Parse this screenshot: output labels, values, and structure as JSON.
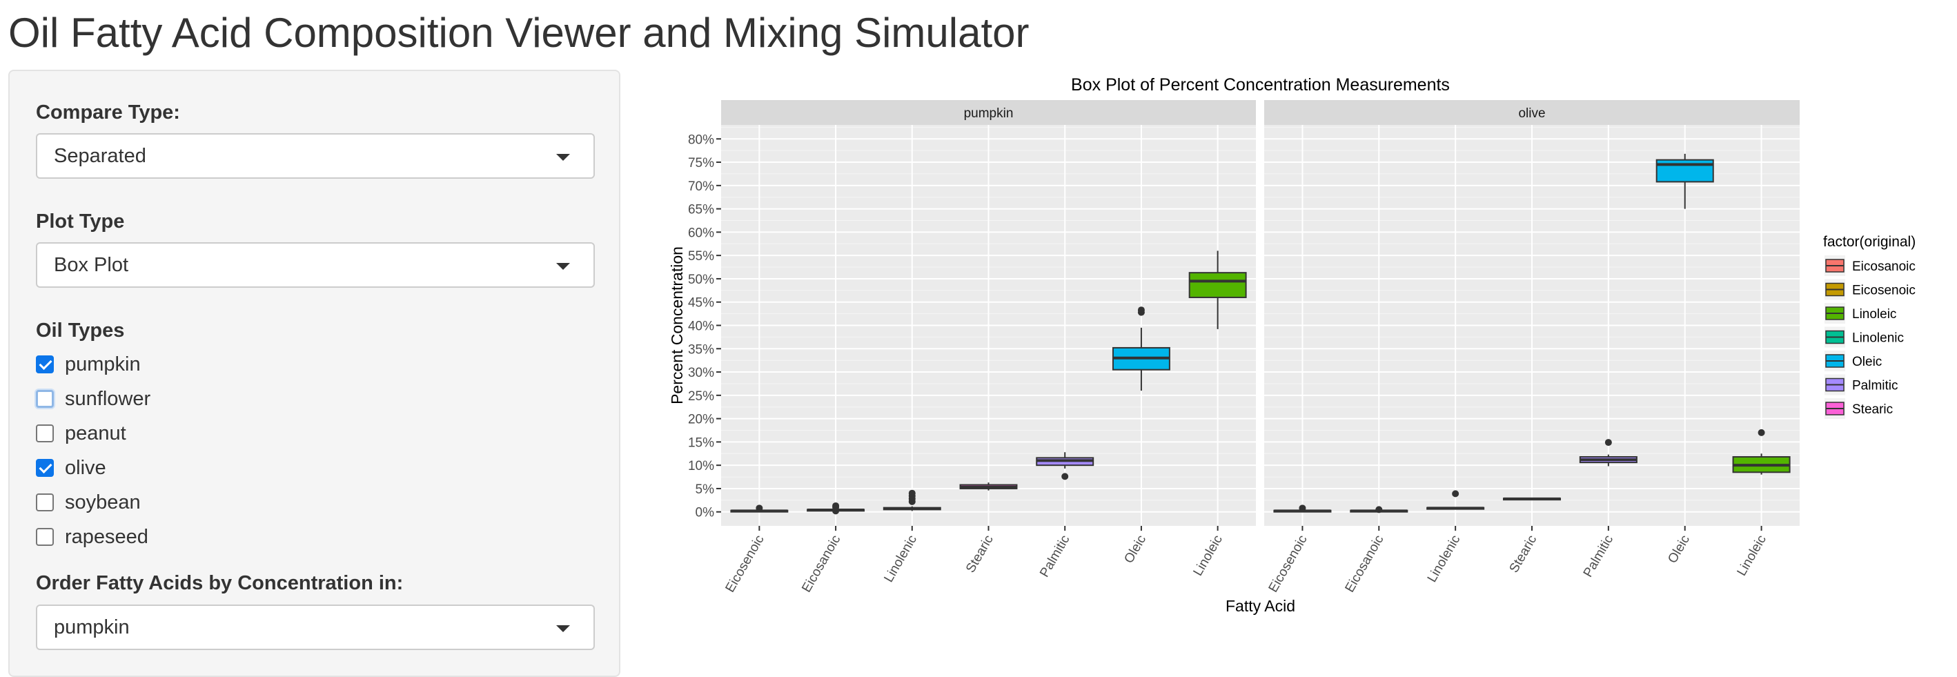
{
  "app": {
    "title": "Oil Fatty Acid Composition Viewer and Mixing Simulator"
  },
  "sidebar": {
    "compare_type": {
      "label": "Compare Type:",
      "value": "Separated"
    },
    "plot_type": {
      "label": "Plot Type",
      "value": "Box Plot"
    },
    "oil_types": {
      "label": "Oil Types",
      "options": [
        {
          "label": "pumpkin",
          "checked": true
        },
        {
          "label": "sunflower",
          "checked": false,
          "focused": true
        },
        {
          "label": "peanut",
          "checked": false
        },
        {
          "label": "olive",
          "checked": true
        },
        {
          "label": "soybean",
          "checked": false
        },
        {
          "label": "rapeseed",
          "checked": false
        }
      ]
    },
    "order_by": {
      "label": "Order Fatty Acids by Concentration in:",
      "value": "pumpkin"
    }
  },
  "chart_data": {
    "type": "box",
    "title": "Box Plot of Percent Concentration Measurements",
    "xlabel": "Fatty Acid",
    "ylabel": "Percent Concentration",
    "ylim": [
      -3,
      83
    ],
    "yticks": [
      "0%",
      "5%",
      "10%",
      "15%",
      "20%",
      "25%",
      "30%",
      "35%",
      "40%",
      "45%",
      "50%",
      "55%",
      "60%",
      "65%",
      "70%",
      "75%",
      "80%"
    ],
    "categories": [
      "Eicosenoic",
      "Eicosanoic",
      "Linolenic",
      "Stearic",
      "Palmitic",
      "Oleic",
      "Linoleic"
    ],
    "legend": {
      "title": "factor(original)",
      "position": "right",
      "entries": [
        {
          "label": "Eicosanoic",
          "color": "#F8766D"
        },
        {
          "label": "Eicosenoic",
          "color": "#C49A00"
        },
        {
          "label": "Linoleic",
          "color": "#53B400"
        },
        {
          "label": "Linolenic",
          "color": "#00C094"
        },
        {
          "label": "Oleic",
          "color": "#00B6EB"
        },
        {
          "label": "Palmitic",
          "color": "#A58AFF"
        },
        {
          "label": "Stearic",
          "color": "#FB61D7"
        }
      ]
    },
    "panels": [
      {
        "name": "pumpkin",
        "boxes": [
          {
            "category": "Eicosenoic",
            "color": "#C49A00",
            "min": 0,
            "q1": 0.1,
            "median": 0.2,
            "q3": 0.3,
            "max": 0.4,
            "outliers": [
              0.8
            ]
          },
          {
            "category": "Eicosanoic",
            "color": "#F8766D",
            "min": 0.1,
            "q1": 0.3,
            "median": 0.4,
            "q3": 0.5,
            "max": 0.8,
            "outliers": [
              0.2,
              1.0,
              1.3
            ]
          },
          {
            "category": "Linolenic",
            "color": "#00C094",
            "min": 0.2,
            "q1": 0.5,
            "median": 0.7,
            "q3": 0.9,
            "max": 1.2,
            "outliers": [
              2.2,
              2.8,
              3.4,
              4.0
            ]
          },
          {
            "category": "Stearic",
            "color": "#FB61D7",
            "min": 4.6,
            "q1": 5.0,
            "median": 5.3,
            "q3": 5.8,
            "max": 6.3,
            "outliers": []
          },
          {
            "category": "Palmitic",
            "color": "#A58AFF",
            "min": 9.3,
            "q1": 10.0,
            "median": 11.0,
            "q3": 11.6,
            "max": 12.8,
            "outliers": [
              7.6
            ]
          },
          {
            "category": "Oleic",
            "color": "#00B6EB",
            "min": 26.0,
            "q1": 30.5,
            "median": 33.0,
            "q3": 35.2,
            "max": 39.5,
            "outliers": [
              42.8,
              43.3
            ]
          },
          {
            "category": "Linoleic",
            "color": "#53B400",
            "min": 39.2,
            "q1": 46.0,
            "median": 49.5,
            "q3": 51.3,
            "max": 56.0,
            "outliers": []
          }
        ]
      },
      {
        "name": "olive",
        "boxes": [
          {
            "category": "Eicosenoic",
            "color": "#C49A00",
            "min": 0.1,
            "q1": 0.1,
            "median": 0.2,
            "q3": 0.3,
            "max": 0.4,
            "outliers": [
              0.8
            ]
          },
          {
            "category": "Eicosanoic",
            "color": "#F8766D",
            "min": 0.1,
            "q1": 0.1,
            "median": 0.2,
            "q3": 0.3,
            "max": 0.4,
            "outliers": [
              0.5
            ]
          },
          {
            "category": "Linolenic",
            "color": "#00C094",
            "min": 0.6,
            "q1": 0.7,
            "median": 0.8,
            "q3": 0.9,
            "max": 1.0,
            "outliers": [
              3.9
            ]
          },
          {
            "category": "Stearic",
            "color": "#FB61D7",
            "min": 2.6,
            "q1": 2.7,
            "median": 2.8,
            "q3": 2.9,
            "max": 3.0,
            "outliers": []
          },
          {
            "category": "Palmitic",
            "color": "#A58AFF",
            "min": 9.8,
            "q1": 10.6,
            "median": 11.2,
            "q3": 11.8,
            "max": 12.3,
            "outliers": [
              14.9
            ]
          },
          {
            "category": "Oleic",
            "color": "#00B6EB",
            "min": 65.0,
            "q1": 70.8,
            "median": 74.5,
            "q3": 75.5,
            "max": 76.8,
            "outliers": []
          },
          {
            "category": "Linoleic",
            "color": "#53B400",
            "min": 8.0,
            "q1": 8.5,
            "median": 10.0,
            "q3": 11.8,
            "max": 12.5,
            "outliers": [
              17.0
            ]
          }
        ]
      }
    ]
  }
}
